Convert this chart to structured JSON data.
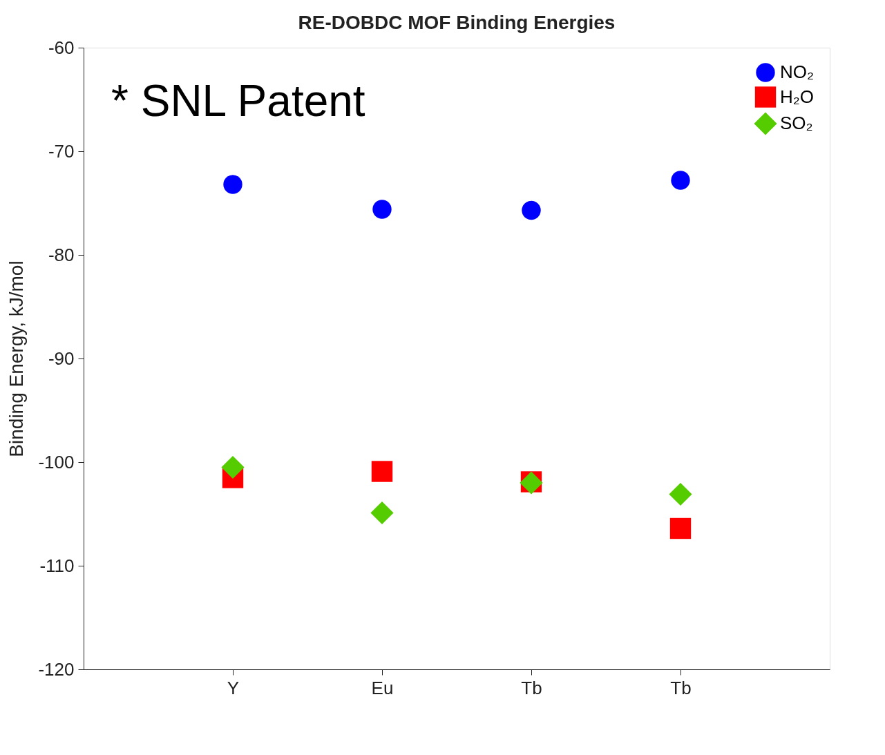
{
  "chart_data": {
    "type": "scatter",
    "title": "RE-DOBDC MOF Binding Energies",
    "ylabel": "Binding Energy, kJ/mol",
    "categories": [
      "Y",
      "Eu",
      "Tb",
      "Tb"
    ],
    "series": [
      {
        "name": "NO₂",
        "color": "#0000ff",
        "marker": "circle",
        "values": [
          -73.2,
          -75.6,
          -75.7,
          -72.8
        ]
      },
      {
        "name": "H₂O",
        "color": "#ff0000",
        "marker": "square",
        "values": [
          -101.5,
          -100.9,
          -101.9,
          -106.4
        ]
      },
      {
        "name": "SO₂",
        "color": "#55cc00",
        "marker": "diamond",
        "values": [
          -100.5,
          -104.9,
          -102.0,
          -103.1
        ]
      }
    ],
    "ylim": [
      -120,
      -60
    ],
    "yticks": [
      -120,
      -110,
      -100,
      -90,
      -80,
      -70,
      -60
    ],
    "grid": false,
    "legend": "top right",
    "annotations": [
      "* SNL Patent"
    ]
  }
}
